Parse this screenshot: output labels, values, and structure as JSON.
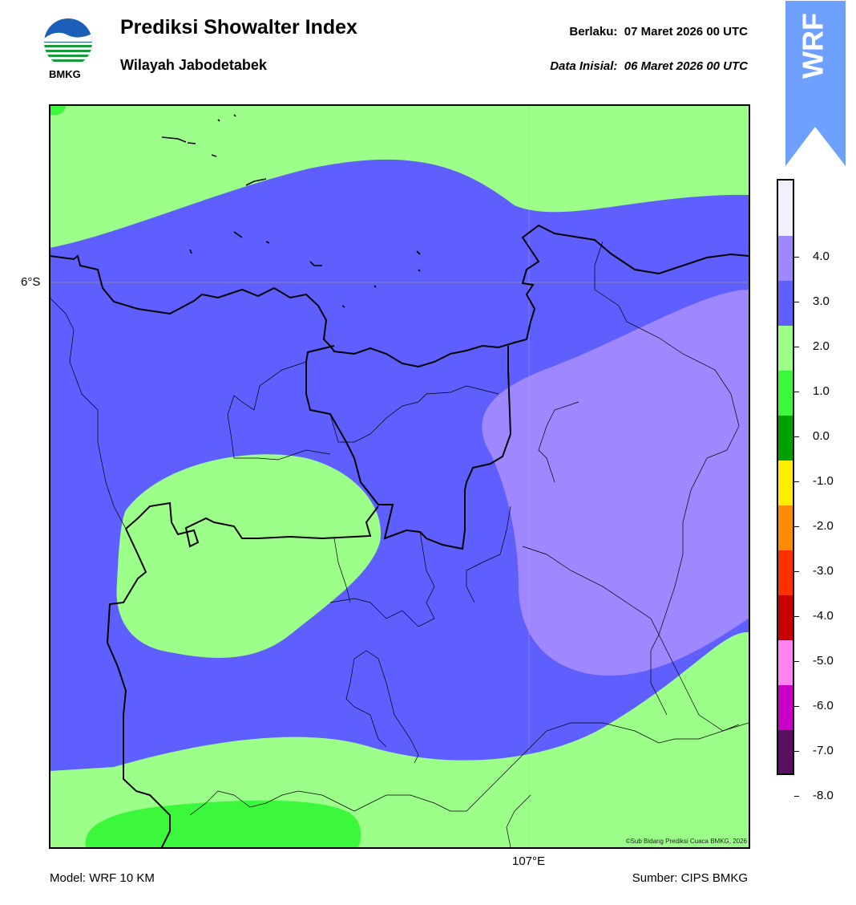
{
  "header": {
    "title": "Prediksi Showalter Index",
    "subtitle": "Wilayah Jabodetabek",
    "valid_label": "Berlaku:",
    "valid_time": "07 Maret 2026 00 UTC",
    "init_label": "Data Inisial:",
    "init_time": "06 Maret 2026 00 UTC"
  },
  "logo": {
    "text": "BMKG",
    "icon": "bmkg-logo"
  },
  "badge": {
    "text": "WRF",
    "color": "#6ea0ff"
  },
  "map": {
    "lat_label": "6°S",
    "lon_label": "107°E",
    "copyright": "©Sub Bidang Prediksi Cuaca BMKG, 2026"
  },
  "colorbar": {
    "ticks": [
      "4.0",
      "3.0",
      "2.0",
      "1.0",
      "0.0",
      "-1.0",
      "-2.0",
      "-3.0",
      "-4.0",
      "-5.0",
      "-6.0",
      "-7.0",
      "-8.0"
    ],
    "colors_top_to_bottom": [
      "#f0f0ff",
      "#9f87ff",
      "#5f5fff",
      "#9cff8a",
      "#3cf83c",
      "#00a000",
      "#ffee00",
      "#ff8c00",
      "#ff3000",
      "#c80000",
      "#ff84f0",
      "#c800c8",
      "#5a1060"
    ]
  },
  "footer": {
    "model": "Model: WRF 10 KM",
    "source": "Sumber: CIPS BMKG"
  }
}
